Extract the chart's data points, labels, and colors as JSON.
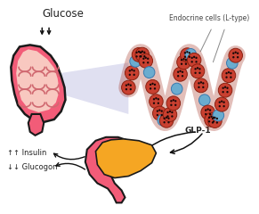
{
  "bg_color": "#ffffff",
  "glucose_text": "Glucose",
  "glp1_text": "GLP-1",
  "endocrine_text": "Endocrine cells (L-type)",
  "insulin_text": "↑↑ Insulin",
  "glucagon_text": "↓↓ Glucogon",
  "intestine_pink": "#f25c78",
  "intestine_inner": "#f5a0a8",
  "intestine_outline": "#1a1a1a",
  "pancreas_orange": "#f5a623",
  "pancreas_pink": "#f25c78",
  "pancreas_outline": "#1a1a1a",
  "cell_red": "#c94030",
  "cell_blue": "#6aaccf",
  "cell_outline_red": "#8b2010",
  "cell_outline_blue": "#3a7aaf",
  "beam_color": "#9090d0",
  "beam_alpha": 0.28,
  "arrow_color": "#111111",
  "text_color": "#222222",
  "annot_color": "#444444",
  "fs_glucose": 8.5,
  "fs_label": 5.5,
  "fs_glp1": 6.5
}
